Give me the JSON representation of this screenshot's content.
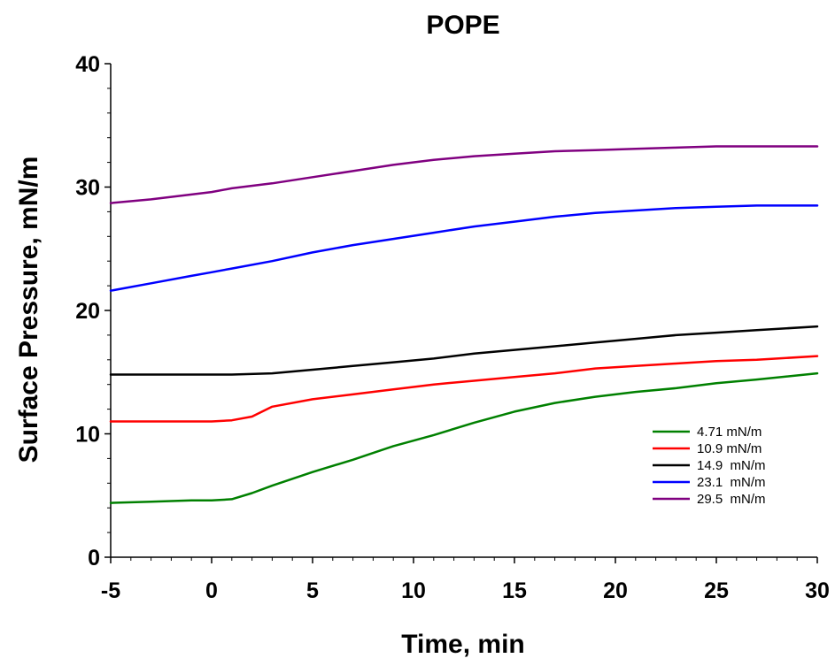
{
  "chart_data": {
    "type": "line",
    "title": "POPE",
    "xlabel": "Time, min",
    "ylabel": "Surface Pressure, mN/m",
    "xlim": [
      -5,
      30
    ],
    "ylim": [
      0,
      40
    ],
    "xticks": [
      -5,
      0,
      5,
      10,
      15,
      20,
      25,
      30
    ],
    "yticks": [
      0,
      10,
      20,
      30,
      40
    ],
    "grid": false,
    "legend_position": "bottom-right",
    "series": [
      {
        "name": "4.71 mN/m",
        "color": "#008000",
        "x": [
          -5,
          -3,
          -1,
          0,
          1,
          2,
          3,
          5,
          7,
          9,
          11,
          13,
          15,
          17,
          19,
          21,
          23,
          25,
          27,
          30
        ],
        "y": [
          4.4,
          4.5,
          4.6,
          4.6,
          4.7,
          5.2,
          5.8,
          6.9,
          7.9,
          9.0,
          9.9,
          10.9,
          11.8,
          12.5,
          13.0,
          13.4,
          13.7,
          14.1,
          14.4,
          14.9
        ]
      },
      {
        "name": "10.9 mN/m",
        "color": "#ff0000",
        "x": [
          -5,
          -3,
          -1,
          0,
          1,
          2,
          3,
          5,
          7,
          9,
          11,
          13,
          15,
          17,
          19,
          21,
          23,
          25,
          27,
          30
        ],
        "y": [
          11.0,
          11.0,
          11.0,
          11.0,
          11.1,
          11.4,
          12.2,
          12.8,
          13.2,
          13.6,
          14.0,
          14.3,
          14.6,
          14.9,
          15.3,
          15.5,
          15.7,
          15.9,
          16.0,
          16.3
        ]
      },
      {
        "name": "14.9  mN/m",
        "color": "#000000",
        "x": [
          -5,
          -3,
          -1,
          0,
          1,
          3,
          5,
          7,
          9,
          11,
          13,
          15,
          17,
          19,
          21,
          23,
          25,
          27,
          30
        ],
        "y": [
          14.8,
          14.8,
          14.8,
          14.8,
          14.8,
          14.9,
          15.2,
          15.5,
          15.8,
          16.1,
          16.5,
          16.8,
          17.1,
          17.4,
          17.7,
          18.0,
          18.2,
          18.4,
          18.7
        ]
      },
      {
        "name": "23.1  mN/m",
        "color": "#0000ff",
        "x": [
          -5,
          -3,
          -1,
          0,
          1,
          3,
          5,
          7,
          9,
          11,
          13,
          15,
          17,
          19,
          21,
          23,
          25,
          27,
          30
        ],
        "y": [
          21.6,
          22.2,
          22.8,
          23.1,
          23.4,
          24.0,
          24.7,
          25.3,
          25.8,
          26.3,
          26.8,
          27.2,
          27.6,
          27.9,
          28.1,
          28.3,
          28.4,
          28.5,
          28.5
        ]
      },
      {
        "name": "29.5  mN/m",
        "color": "#800080",
        "x": [
          -5,
          -3,
          -1,
          0,
          1,
          3,
          5,
          7,
          9,
          11,
          13,
          15,
          17,
          19,
          21,
          23,
          25,
          27,
          30
        ],
        "y": [
          28.7,
          29.0,
          29.4,
          29.6,
          29.9,
          30.3,
          30.8,
          31.3,
          31.8,
          32.2,
          32.5,
          32.7,
          32.9,
          33.0,
          33.1,
          33.2,
          33.3,
          33.3,
          33.3
        ]
      }
    ]
  }
}
